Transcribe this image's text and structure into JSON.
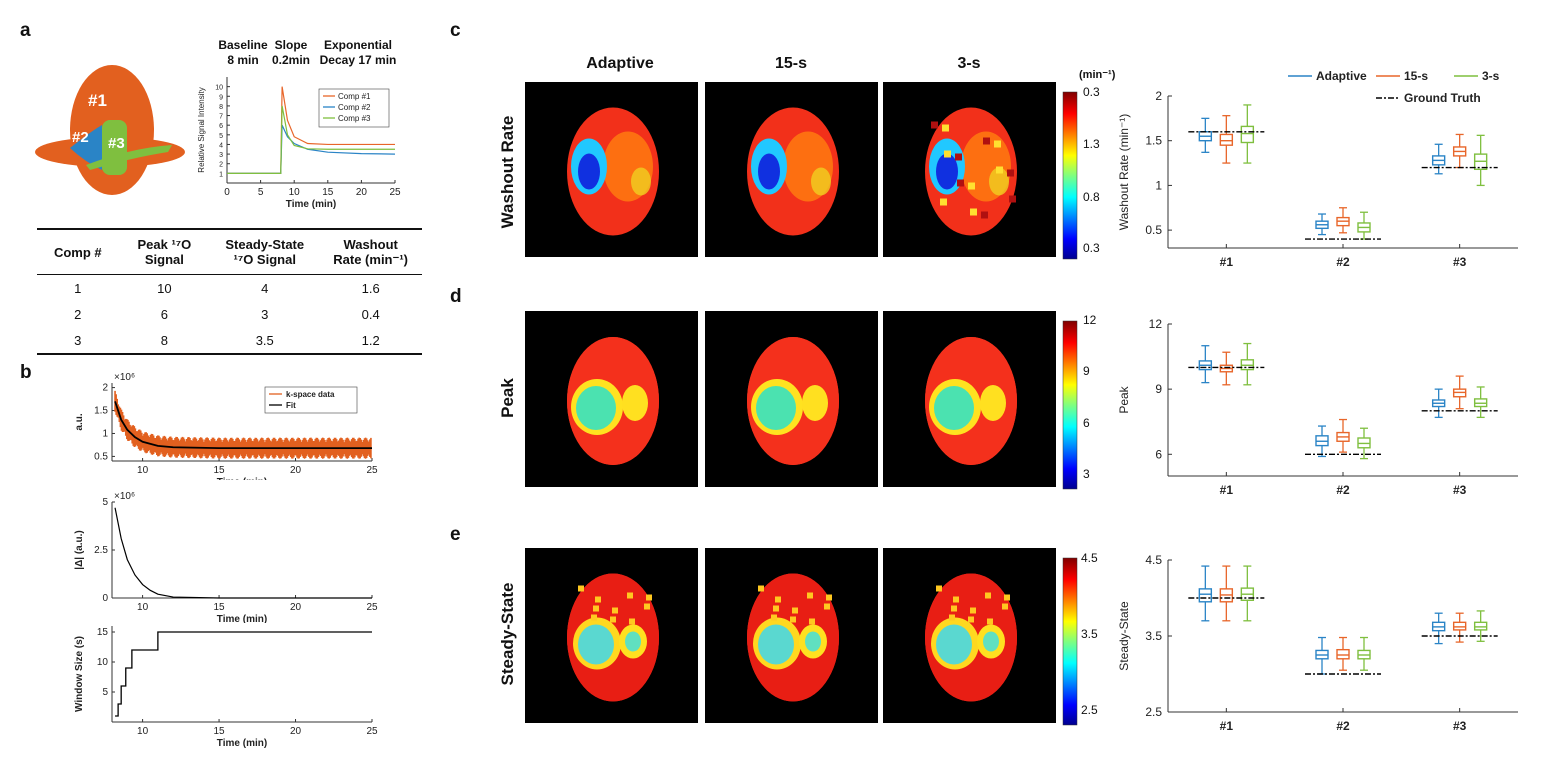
{
  "panel_labels": {
    "a": "a",
    "b": "b",
    "c": "c",
    "d": "d",
    "e": "e"
  },
  "panel_a": {
    "phantom": {
      "comp1": "#1",
      "comp2": "#2",
      "comp3": "#3"
    },
    "phases": [
      {
        "line1": "Baseline",
        "line2": "8 min"
      },
      {
        "line1": "Slope",
        "line2": "0.2min"
      },
      {
        "line1": "Exponential",
        "line2": "Decay 17 min"
      }
    ],
    "colors": {
      "comp1": "#e8662a",
      "comp2": "#2a84c6",
      "comp3": "#7fbf3f",
      "phantom_body": "#e2601f"
    },
    "table": {
      "headers": [
        {
          "line1": "Comp #",
          "line2": ""
        },
        {
          "line1": "Peak ¹⁷O",
          "line2": "Signal"
        },
        {
          "line1": "Steady-State",
          "line2": "¹⁷O Signal"
        },
        {
          "line1": "Washout",
          "line2": "Rate (min⁻¹)"
        }
      ],
      "rows": [
        [
          "1",
          "10",
          "4",
          "1.6"
        ],
        [
          "2",
          "6",
          "3",
          "0.4"
        ],
        [
          "3",
          "8",
          "3.5",
          "1.2"
        ]
      ]
    }
  },
  "maps": {
    "column_headers": [
      "Adaptive",
      "15-s",
      "3-s"
    ],
    "row_labels": [
      "Washout Rate",
      "Peak",
      "Steady-State"
    ],
    "colorbars": [
      {
        "unit": "(min⁻¹)",
        "ticks": [
          "0.3",
          "1.3",
          "0.8",
          "0.3"
        ]
      },
      {
        "unit": "",
        "ticks": [
          "12",
          "9",
          "6",
          "3"
        ]
      },
      {
        "unit": "",
        "ticks": [
          "4.5",
          "3.5",
          "2.5"
        ]
      }
    ]
  },
  "chart_data": [
    {
      "id": "a-signal",
      "type": "line",
      "xlabel": "Time (min)",
      "ylabel": "Relative Signal Intensity",
      "xlim": [
        0,
        25
      ],
      "ylim": [
        0,
        11
      ],
      "xticks": [
        "0",
        "5",
        "10",
        "15",
        "20",
        "25"
      ],
      "yticks": [
        "1",
        "2",
        "3",
        "4",
        "5",
        "6",
        "7",
        "8",
        "9",
        "10"
      ],
      "legend": "top-right",
      "series": [
        {
          "name": "Comp #1",
          "color": "#e8662a",
          "x": [
            0,
            8,
            8.2,
            9,
            10,
            12,
            15,
            20,
            25
          ],
          "y": [
            1,
            1,
            10,
            6.5,
            4.8,
            4.1,
            4,
            4,
            4
          ]
        },
        {
          "name": "Comp #2",
          "color": "#2a84c6",
          "x": [
            0,
            8,
            8.2,
            9,
            10,
            12,
            15,
            20,
            25
          ],
          "y": [
            1,
            1,
            6,
            4.8,
            4.1,
            3.5,
            3.2,
            3.05,
            3
          ]
        },
        {
          "name": "Comp #3",
          "color": "#7fbf3f",
          "x": [
            0,
            8,
            8.2,
            9,
            10,
            12,
            15,
            20,
            25
          ],
          "y": [
            1,
            1,
            8,
            5,
            3.9,
            3.55,
            3.5,
            3.5,
            3.5
          ]
        }
      ]
    },
    {
      "id": "b-kspace",
      "type": "line",
      "xlabel": "Time (min)",
      "ylabel": "a.u.",
      "yexp": "×10⁶",
      "xlim": [
        8,
        25
      ],
      "ylim": [
        0.4,
        2.1
      ],
      "xticks": [
        "10",
        "15",
        "20",
        "25"
      ],
      "yticks": [
        "0.5",
        "1",
        "1.5",
        "2"
      ],
      "legend": "top-right",
      "series": [
        {
          "name": "k-space data",
          "color": "#e2601f"
        },
        {
          "name": "Fit",
          "color": "#000000",
          "x": [
            8.2,
            8.6,
            9,
            9.5,
            10,
            11,
            12,
            15,
            20,
            25
          ],
          "y": [
            1.7,
            1.3,
            1.08,
            0.92,
            0.82,
            0.73,
            0.7,
            0.68,
            0.68,
            0.68
          ]
        }
      ]
    },
    {
      "id": "b-delta",
      "type": "line",
      "xlabel": "Time (min)",
      "ylabel": "|Δ| (a.u.)",
      "yexp": "×10⁶",
      "xlim": [
        8,
        25
      ],
      "ylim": [
        0,
        5
      ],
      "xticks": [
        "10",
        "15",
        "20",
        "25"
      ],
      "yticks": [
        "0",
        "2.5",
        "5"
      ],
      "series": [
        {
          "name": "",
          "color": "#000000",
          "x": [
            8.2,
            8.6,
            9,
            9.5,
            10,
            10.5,
            11,
            12,
            15,
            25
          ],
          "y": [
            4.7,
            3.1,
            2.0,
            1.2,
            0.7,
            0.4,
            0.2,
            0.05,
            0,
            0
          ]
        }
      ]
    },
    {
      "id": "b-window",
      "type": "line",
      "xlabel": "Time (min)",
      "ylabel": "Window Size (s)",
      "xlim": [
        8,
        25
      ],
      "ylim": [
        0,
        16
      ],
      "xticks": [
        "10",
        "15",
        "20",
        "25"
      ],
      "yticks": [
        "5",
        "10",
        "15"
      ],
      "series": [
        {
          "name": "",
          "color": "#000000",
          "x": [
            8.2,
            8.4,
            8.4,
            8.6,
            8.6,
            8.9,
            8.9,
            9.3,
            9.3,
            10,
            10,
            11,
            11,
            25
          ],
          "y": [
            1,
            1,
            3,
            3,
            6,
            6,
            9,
            9,
            12,
            12,
            12,
            12,
            15,
            15
          ]
        }
      ]
    },
    {
      "id": "c-washout",
      "type": "box",
      "ylabel": "Washout Rate (min⁻¹)",
      "ylim": [
        0.3,
        2.0
      ],
      "yticks": [
        "2",
        "1.5",
        "1",
        "0.5"
      ],
      "categories": [
        "#1",
        "#2",
        "#3"
      ],
      "legend": "top-right",
      "series": [
        {
          "name": "Adaptive",
          "color": "#2a84c6",
          "boxes": [
            [
              1.37,
              1.5,
              1.55,
              1.6,
              1.75
            ],
            [
              0.45,
              0.52,
              0.56,
              0.6,
              0.68
            ],
            [
              1.13,
              1.23,
              1.28,
              1.33,
              1.46
            ]
          ]
        },
        {
          "name": "15-s",
          "color": "#e8662a",
          "boxes": [
            [
              1.25,
              1.45,
              1.5,
              1.57,
              1.78
            ],
            [
              0.47,
              0.55,
              0.6,
              0.64,
              0.75
            ],
            [
              1.2,
              1.33,
              1.38,
              1.43,
              1.57
            ]
          ]
        },
        {
          "name": "3-s",
          "color": "#7fbf3f",
          "boxes": [
            [
              1.25,
              1.48,
              1.58,
              1.66,
              1.9
            ],
            [
              0.4,
              0.48,
              0.53,
              0.58,
              0.7
            ],
            [
              1.0,
              1.18,
              1.27,
              1.35,
              1.56
            ]
          ]
        }
      ],
      "ground_truth": {
        "name": "Ground Truth",
        "values": [
          1.6,
          0.4,
          1.2
        ]
      }
    },
    {
      "id": "d-peak",
      "type": "box",
      "ylabel": "Peak",
      "ylim": [
        5,
        12
      ],
      "yticks": [
        "12",
        "9",
        "6"
      ],
      "categories": [
        "#1",
        "#2",
        "#3"
      ],
      "series": [
        {
          "name": "Adaptive",
          "color": "#2a84c6",
          "boxes": [
            [
              9.3,
              9.9,
              10.1,
              10.3,
              11.0
            ],
            [
              5.9,
              6.4,
              6.6,
              6.85,
              7.3
            ],
            [
              7.7,
              8.2,
              8.35,
              8.5,
              9.0
            ]
          ]
        },
        {
          "name": "15-s",
          "color": "#e8662a",
          "boxes": [
            [
              9.2,
              9.8,
              9.95,
              10.1,
              10.7
            ],
            [
              6.1,
              6.6,
              6.8,
              7.0,
              7.6
            ],
            [
              8.1,
              8.65,
              8.85,
              9.0,
              9.6
            ]
          ]
        },
        {
          "name": "3-s",
          "color": "#7fbf3f",
          "boxes": [
            [
              9.2,
              9.9,
              10.1,
              10.35,
              11.1
            ],
            [
              5.8,
              6.3,
              6.5,
              6.75,
              7.2
            ],
            [
              7.7,
              8.2,
              8.35,
              8.55,
              9.1
            ]
          ]
        }
      ],
      "ground_truth": {
        "name": "Ground Truth",
        "values": [
          10,
          6,
          8
        ]
      }
    },
    {
      "id": "e-steady",
      "type": "box",
      "ylabel": "Steady-State",
      "ylim": [
        2.5,
        4.5
      ],
      "yticks": [
        "4.5",
        "3.5",
        "2.5"
      ],
      "categories": [
        "#1",
        "#2",
        "#3"
      ],
      "series": [
        {
          "name": "Adaptive",
          "color": "#2a84c6",
          "boxes": [
            [
              3.7,
              3.95,
              4.05,
              4.12,
              4.42
            ],
            [
              3.0,
              3.2,
              3.25,
              3.31,
              3.48
            ],
            [
              3.4,
              3.57,
              3.62,
              3.68,
              3.8
            ]
          ]
        },
        {
          "name": "15-s",
          "color": "#e8662a",
          "boxes": [
            [
              3.7,
              3.95,
              4.04,
              4.12,
              4.42
            ],
            [
              3.05,
              3.2,
              3.25,
              3.32,
              3.48
            ],
            [
              3.42,
              3.58,
              3.62,
              3.68,
              3.8
            ]
          ]
        },
        {
          "name": "3-s",
          "color": "#7fbf3f",
          "boxes": [
            [
              3.7,
              3.97,
              4.05,
              4.13,
              4.42
            ],
            [
              3.05,
              3.2,
              3.25,
              3.31,
              3.48
            ],
            [
              3.43,
              3.58,
              3.62,
              3.68,
              3.83
            ]
          ]
        }
      ],
      "ground_truth": {
        "name": "Ground Truth",
        "values": [
          4,
          3,
          3.5
        ]
      }
    }
  ]
}
